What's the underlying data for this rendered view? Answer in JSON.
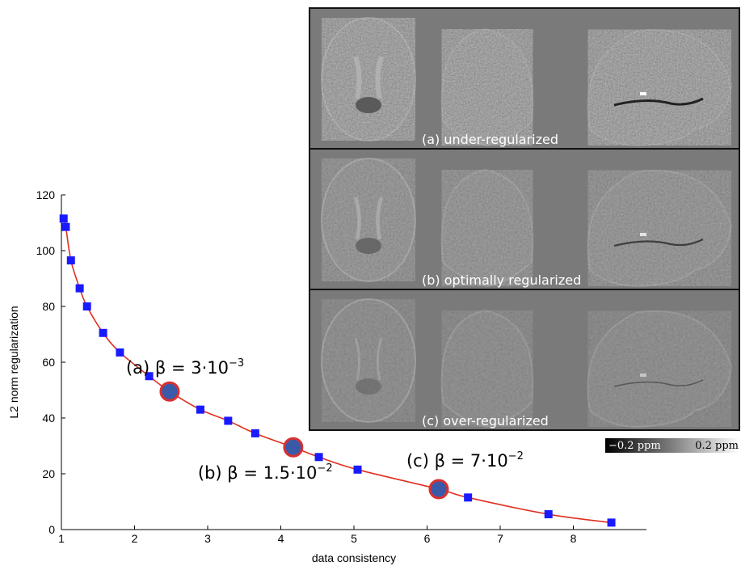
{
  "chart_data": {
    "type": "line",
    "xlabel": "data consistency",
    "ylabel": "L2 norm regularization",
    "xlim": [
      1,
      9
    ],
    "ylim": [
      0,
      120
    ],
    "x_ticks": [
      "1",
      "2",
      "3",
      "4",
      "5",
      "6",
      "7",
      "8"
    ],
    "y_ticks": [
      "0",
      "20",
      "40",
      "60",
      "80",
      "100",
      "120"
    ],
    "line_color": "#e03020",
    "marker_color": "#1a1aff",
    "series": [
      {
        "x": [
          1.03,
          1.06,
          1.13,
          1.25,
          1.35,
          1.57,
          1.8,
          2.2,
          2.9,
          3.28,
          3.65,
          4.52,
          5.05,
          6.56,
          7.66,
          8.52
        ],
        "y": [
          111.5,
          108.5,
          96.5,
          86.5,
          80,
          70.5,
          63.5,
          55,
          43,
          39,
          34.5,
          26,
          21.5,
          11.5,
          5.5,
          2.5
        ]
      }
    ],
    "highlighted_points": [
      {
        "x": 2.48,
        "y": 49.5,
        "label": "(a) β = 3·10",
        "exponent": "−3"
      },
      {
        "x": 4.17,
        "y": 29.5,
        "label": "(b) β = 1.5·10",
        "exponent": "−2"
      },
      {
        "x": 6.16,
        "y": 14.5,
        "label": "(c) β = 7·10",
        "exponent": "−2"
      }
    ],
    "highlight_fill": "#3a5aa8",
    "highlight_stroke": "#d93030"
  },
  "panels": [
    {
      "caption": "(a) under-regularized",
      "level": "high"
    },
    {
      "caption": "(b) optimally regularized",
      "level": "medium"
    },
    {
      "caption": "(c) over-regularized",
      "level": "low"
    }
  ],
  "colorbar": {
    "min_label": "−0.2 ppm",
    "max_label": "0.2 ppm"
  }
}
